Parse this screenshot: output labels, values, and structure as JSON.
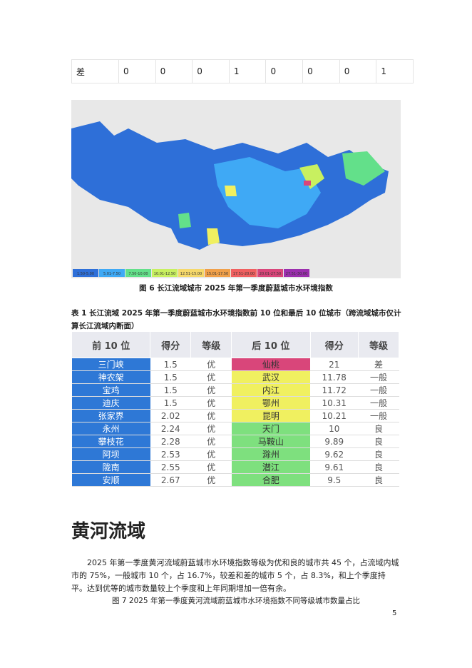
{
  "top_table": {
    "row": [
      "差",
      "0",
      "0",
      "0",
      "1",
      "0",
      "0",
      "0",
      "1"
    ]
  },
  "figure6": {
    "legend": {
      "labels": [
        "1.50-5.00",
        "5.01-7.50",
        "7.50-10.00",
        "10.01-12.50",
        "12.51-15.00",
        "15.01-17.50",
        "17.51-20.00",
        "20.01-27.50",
        "27.51-30.00"
      ],
      "colors": [
        "#2e6fd8",
        "#3fa9f5",
        "#63e08a",
        "#c8f060",
        "#f5d86a",
        "#f0a04a",
        "#f06060",
        "#d9467a",
        "#9b2fae"
      ]
    },
    "caption": "图 6  长江流域城市 2025 年第一季度蔚蓝城市水环境指数"
  },
  "table1": {
    "caption": "表 1  长江流域 2025 年第一季度蔚蓝城市水环境指数前 10 位和最后 10 位城市（跨流域城市仅计算长江流域内断面）",
    "header": [
      "前 10 位",
      "得分",
      "等级",
      "后 10 位",
      "得分",
      "等级"
    ],
    "rows": [
      [
        "三门峡",
        "1.5",
        "优",
        "仙桃",
        "21",
        "差"
      ],
      [
        "神农架",
        "1.5",
        "优",
        "武汉",
        "11.78",
        "一般"
      ],
      [
        "宝鸡",
        "1.5",
        "优",
        "内江",
        "11.72",
        "一般"
      ],
      [
        "迪庆",
        "1.5",
        "优",
        "鄂州",
        "10.31",
        "一般"
      ],
      [
        "张家界",
        "2.02",
        "优",
        "昆明",
        "10.21",
        "一般"
      ],
      [
        "永州",
        "2.24",
        "优",
        "天门",
        "10",
        "良"
      ],
      [
        "攀枝花",
        "2.28",
        "优",
        "马鞍山",
        "9.89",
        "良"
      ],
      [
        "阿坝",
        "2.53",
        "优",
        "滁州",
        "9.62",
        "良"
      ],
      [
        "陇南",
        "2.55",
        "优",
        "潜江",
        "9.61",
        "良"
      ],
      [
        "安顺",
        "2.67",
        "优",
        "合肥",
        "9.5",
        "良"
      ]
    ],
    "top_color": "#2e78d6",
    "bottom_colors": [
      "#d9467a",
      "#f0f060",
      "#f0f060",
      "#f0f060",
      "#f0f060",
      "#7ee07e",
      "#7ee07e",
      "#7ee07e",
      "#7ee07e",
      "#7ee07e"
    ]
  },
  "section": {
    "title": "黄河流域",
    "paragraph": "2025 年第一季度黄河流域蔚蓝城市水环境指数等级为优和良的城市共 45 个，占流域内城市的 75%，一般城市 10 个，占 16.7%，较差和差的城市 5 个，占 8.3%，和上个季度持平。达到优等的城市数量较上个季度和上年同期增加一倍有余。",
    "figure7_caption": "图 7 2025 年第一季度黄河流域蔚蓝城市水环境指数不同等级城市数量占比"
  },
  "page_number": "5"
}
